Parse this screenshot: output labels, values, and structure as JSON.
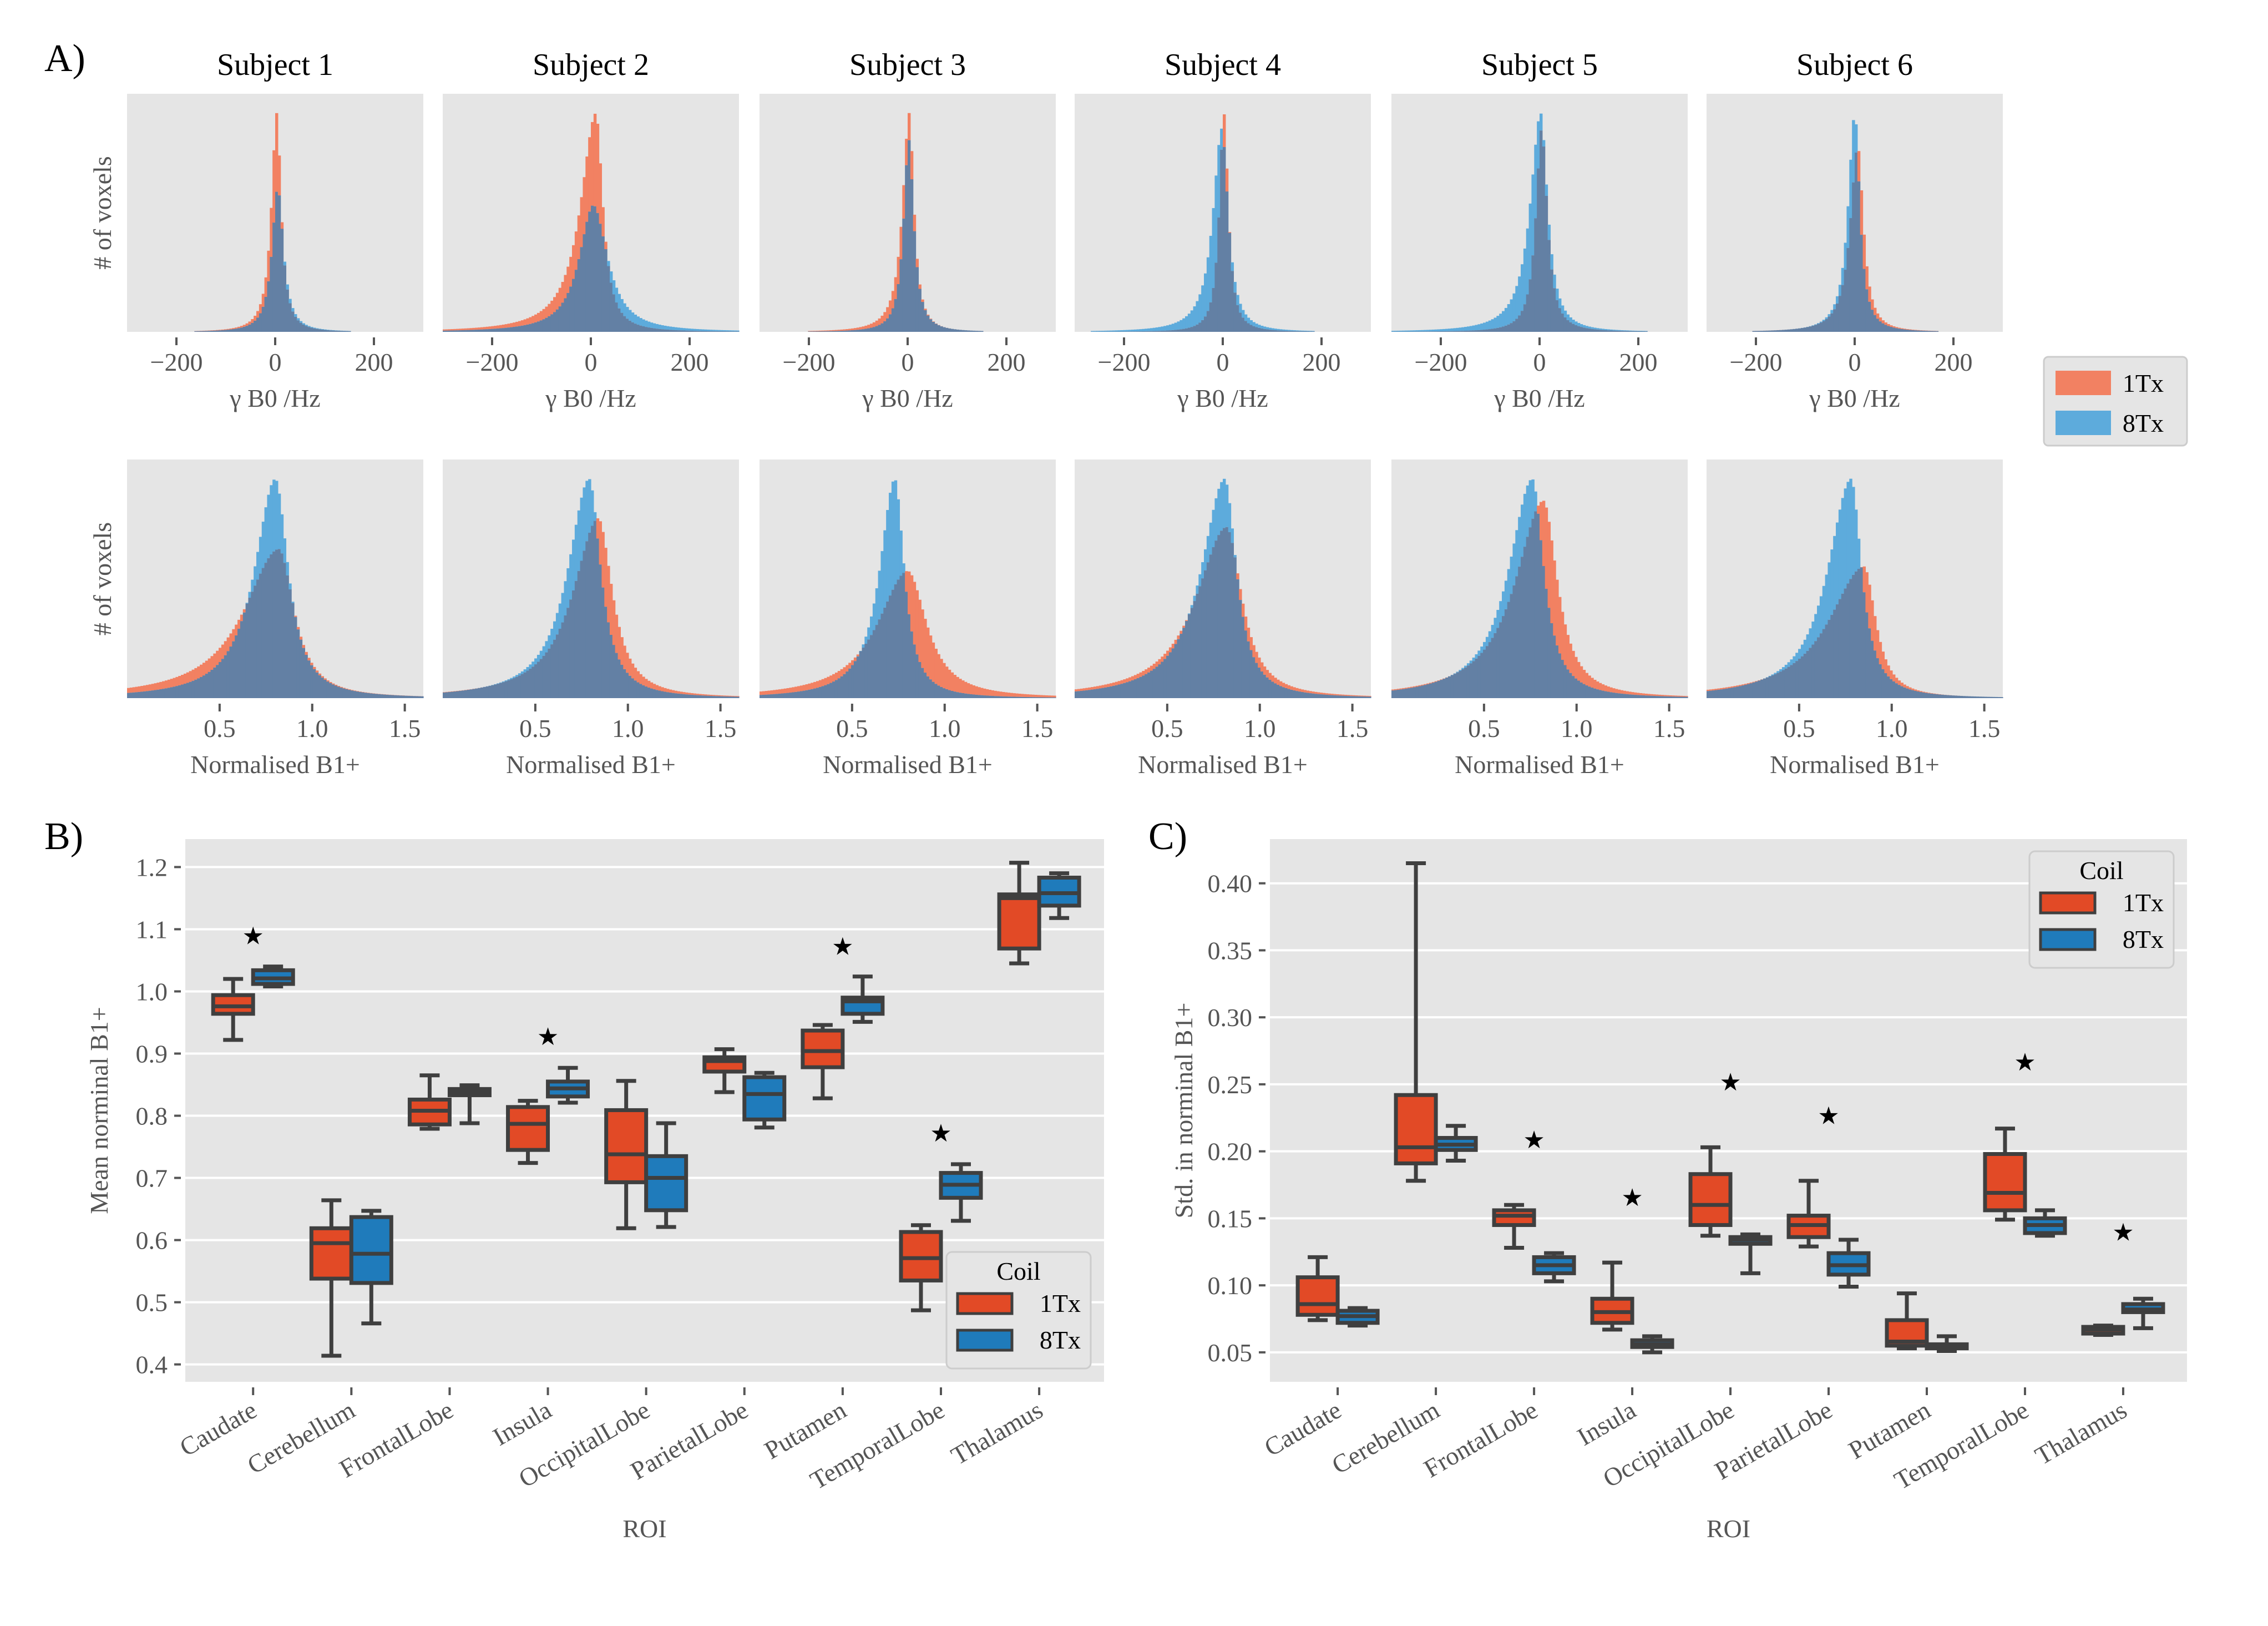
{
  "figure": {
    "panel_letters": [
      "A)",
      "B)",
      "C)"
    ]
  },
  "chart_data": [
    {
      "id": "A",
      "type": "histogram-grid",
      "subjects": [
        "Subject 1",
        "Subject 2",
        "Subject 3",
        "Subject 4",
        "Subject 5",
        "Subject 6"
      ],
      "series_names": [
        "1Tx",
        "8Tx"
      ],
      "series_colors": {
        "1Tx": "#f28162",
        "8Tx": "#5dabdc",
        "overlap": "#6380a4"
      },
      "legend": {
        "entries": [
          "1Tx",
          "8Tx"
        ],
        "placement": "right"
      },
      "rows": [
        {
          "name": "B0",
          "ylabel": "# of voxels",
          "xlabel": "γ B0 /Hz",
          "xlim": [
            -300,
            300
          ],
          "xticks": [
            -200,
            0,
            200
          ],
          "xtick_labels": [
            "−200",
            "0",
            "200"
          ],
          "approx_distributions": [
            {
              "subject": "Subject 1",
              "1Tx": {
                "center": 3,
                "width": 14,
                "peak": 1.0,
                "left_tail": 1.2
              },
              "8Tx": {
                "center": 5,
                "width": 18,
                "peak": 0.66,
                "left_tail": 1.0
              }
            },
            {
              "subject": "Subject 2",
              "1Tx": {
                "center": 10,
                "width": 22,
                "peak": 1.0,
                "left_tail": 2.2
              },
              "8Tx": {
                "center": 5,
                "width": 45,
                "peak": 0.58,
                "left_tail": 1.0
              }
            },
            {
              "subject": "Subject 3",
              "1Tx": {
                "center": 3,
                "width": 15,
                "peak": 1.0,
                "left_tail": 1.4
              },
              "8Tx": {
                "center": 2,
                "width": 16,
                "peak": 0.88,
                "left_tail": 1.0
              }
            },
            {
              "subject": "Subject 4",
              "1Tx": {
                "center": 2,
                "width": 14,
                "peak": 1.0,
                "left_tail": 1.0
              },
              "8Tx": {
                "center": -2,
                "width": 20,
                "peak": 0.93,
                "left_tail": 1.4
              }
            },
            {
              "subject": "Subject 5",
              "1Tx": {
                "center": 4,
                "width": 18,
                "peak": 0.93,
                "left_tail": 1.0
              },
              "8Tx": {
                "center": 2,
                "width": 22,
                "peak": 1.0,
                "left_tail": 1.5
              }
            },
            {
              "subject": "Subject 6",
              "1Tx": {
                "center": 6,
                "width": 18,
                "peak": 0.85,
                "left_tail": 1.3
              },
              "8Tx": {
                "center": 0,
                "width": 16,
                "peak": 1.0,
                "left_tail": 1.3
              }
            }
          ]
        },
        {
          "name": "B1",
          "ylabel": "# of voxels",
          "xlabel": "Normalised B1+",
          "xlim": [
            0.0,
            1.6
          ],
          "xticks": [
            0.5,
            1.0,
            1.5
          ],
          "xtick_labels": [
            "0.5",
            "1.0",
            "1.5"
          ],
          "approx_distributions": [
            {
              "subject": "Subject 1",
              "1Tx": {
                "center": 0.82,
                "width": 0.13,
                "peak": 0.68,
                "left_tail": 2.3
              },
              "8Tx": {
                "center": 0.8,
                "width": 0.11,
                "peak": 1.0,
                "left_tail": 1.6
              }
            },
            {
              "subject": "Subject 2",
              "1Tx": {
                "center": 0.84,
                "width": 0.12,
                "peak": 0.82,
                "left_tail": 1.8
              },
              "8Tx": {
                "center": 0.79,
                "width": 0.1,
                "peak": 1.0,
                "left_tail": 1.8
              }
            },
            {
              "subject": "Subject 3",
              "1Tx": {
                "center": 0.8,
                "width": 0.16,
                "peak": 0.58,
                "left_tail": 1.6
              },
              "8Tx": {
                "center": 0.73,
                "width": 0.08,
                "peak": 1.0,
                "left_tail": 1.6
              }
            },
            {
              "subject": "Subject 4",
              "1Tx": {
                "center": 0.82,
                "width": 0.13,
                "peak": 0.78,
                "left_tail": 2.0
              },
              "8Tx": {
                "center": 0.81,
                "width": 0.1,
                "peak": 1.0,
                "left_tail": 2.0
              }
            },
            {
              "subject": "Subject 5",
              "1Tx": {
                "center": 0.82,
                "width": 0.12,
                "peak": 0.9,
                "left_tail": 2.0
              },
              "8Tx": {
                "center": 0.76,
                "width": 0.1,
                "peak": 1.0,
                "left_tail": 2.0
              }
            },
            {
              "subject": "Subject 6",
              "1Tx": {
                "center": 0.85,
                "width": 0.1,
                "peak": 0.6,
                "left_tail": 3.0
              },
              "8Tx": {
                "center": 0.78,
                "width": 0.09,
                "peak": 1.0,
                "left_tail": 2.2
              }
            }
          ]
        }
      ]
    },
    {
      "id": "B",
      "type": "box",
      "xlabel": "ROI",
      "ylabel": "Mean norminal B1+",
      "ylim": [
        0.372,
        1.245
      ],
      "yticks": [
        0.4,
        0.5,
        0.6,
        0.7,
        0.8,
        0.9,
        1.0,
        1.1,
        1.2
      ],
      "ytick_labels": [
        "0.4",
        "0.5",
        "0.6",
        "0.7",
        "0.8",
        "0.9",
        "1.0",
        "1.1",
        "1.2"
      ],
      "grid": true,
      "categories": [
        "Caudate",
        "Cerebellum",
        "FrontalLobe",
        "Insula",
        "OccipitalLobe",
        "ParietalLobe",
        "Putamen",
        "TemporalLobe",
        "Thalamus"
      ],
      "legend": {
        "title": "Coil",
        "entries": [
          "1Tx",
          "8Tx"
        ],
        "placement": "lower-right"
      },
      "series": [
        {
          "name": "1Tx",
          "color": "#e24a26",
          "boxes": [
            {
              "whislo": 0.922,
              "q1": 0.964,
              "med": 0.976,
              "q3": 0.994,
              "whishi": 1.02
            },
            {
              "whislo": 0.414,
              "q1": 0.538,
              "med": 0.595,
              "q3": 0.619,
              "whishi": 0.664
            },
            {
              "whislo": 0.779,
              "q1": 0.786,
              "med": 0.808,
              "q3": 0.826,
              "whishi": 0.865
            },
            {
              "whislo": 0.724,
              "q1": 0.745,
              "med": 0.787,
              "q3": 0.814,
              "whishi": 0.824
            },
            {
              "whislo": 0.619,
              "q1": 0.693,
              "med": 0.738,
              "q3": 0.809,
              "whishi": 0.856
            },
            {
              "whislo": 0.838,
              "q1": 0.871,
              "med": 0.888,
              "q3": 0.894,
              "whishi": 0.907
            },
            {
              "whislo": 0.828,
              "q1": 0.878,
              "med": 0.904,
              "q3": 0.937,
              "whishi": 0.946
            },
            {
              "whislo": 0.487,
              "q1": 0.535,
              "med": 0.571,
              "q3": 0.613,
              "whishi": 0.624
            },
            {
              "whislo": 1.045,
              "q1": 1.069,
              "med": 1.15,
              "q3": 1.156,
              "whishi": 1.207
            }
          ]
        },
        {
          "name": "8Tx",
          "color": "#1f7bbb",
          "boxes": [
            {
              "whislo": 1.008,
              "q1": 1.012,
              "med": 1.021,
              "q3": 1.034,
              "whishi": 1.04
            },
            {
              "whislo": 0.466,
              "q1": 0.531,
              "med": 0.578,
              "q3": 0.637,
              "whishi": 0.647
            },
            {
              "whislo": 0.788,
              "q1": 0.833,
              "med": 0.838,
              "q3": 0.843,
              "whishi": 0.849
            },
            {
              "whislo": 0.821,
              "q1": 0.831,
              "med": 0.844,
              "q3": 0.855,
              "whishi": 0.877
            },
            {
              "whislo": 0.621,
              "q1": 0.648,
              "med": 0.7,
              "q3": 0.735,
              "whishi": 0.788
            },
            {
              "whislo": 0.781,
              "q1": 0.794,
              "med": 0.835,
              "q3": 0.862,
              "whishi": 0.869
            },
            {
              "whislo": 0.951,
              "q1": 0.964,
              "med": 0.984,
              "q3": 0.99,
              "whishi": 1.024
            },
            {
              "whislo": 0.631,
              "q1": 0.668,
              "med": 0.689,
              "q3": 0.708,
              "whishi": 0.722
            },
            {
              "whislo": 1.118,
              "q1": 1.138,
              "med": 1.158,
              "q3": 1.183,
              "whishi": 1.19
            }
          ]
        }
      ],
      "significance_markers": [
        {
          "category": "Caudate",
          "y": 1.09,
          "symbol": "★"
        },
        {
          "category": "Insula",
          "y": 0.928,
          "symbol": "★"
        },
        {
          "category": "Putamen",
          "y": 1.073,
          "symbol": "★"
        },
        {
          "category": "TemporalLobe",
          "y": 0.773,
          "symbol": "★"
        }
      ]
    },
    {
      "id": "C",
      "type": "box",
      "xlabel": "ROI",
      "ylabel": "Std. in norminal B1+",
      "ylim": [
        0.028,
        0.433
      ],
      "yticks": [
        0.05,
        0.1,
        0.15,
        0.2,
        0.25,
        0.3,
        0.35,
        0.4
      ],
      "ytick_labels": [
        "0.05",
        "0.10",
        "0.15",
        "0.20",
        "0.25",
        "0.30",
        "0.35",
        "0.40"
      ],
      "grid": true,
      "categories": [
        "Caudate",
        "Cerebellum",
        "FrontalLobe",
        "Insula",
        "OccipitalLobe",
        "ParietalLobe",
        "Putamen",
        "TemporalLobe",
        "Thalamus"
      ],
      "legend": {
        "title": "Coil",
        "entries": [
          "1Tx",
          "8Tx"
        ],
        "placement": "upper-right"
      },
      "series": [
        {
          "name": "1Tx",
          "color": "#e24a26",
          "boxes": [
            {
              "whislo": 0.074,
              "q1": 0.078,
              "med": 0.086,
              "q3": 0.106,
              "whishi": 0.121
            },
            {
              "whislo": 0.178,
              "q1": 0.191,
              "med": 0.203,
              "q3": 0.242,
              "whishi": 0.415
            },
            {
              "whislo": 0.128,
              "q1": 0.145,
              "med": 0.152,
              "q3": 0.156,
              "whishi": 0.16
            },
            {
              "whislo": 0.067,
              "q1": 0.072,
              "med": 0.08,
              "q3": 0.09,
              "whishi": 0.117
            },
            {
              "whislo": 0.137,
              "q1": 0.145,
              "med": 0.16,
              "q3": 0.183,
              "whishi": 0.203
            },
            {
              "whislo": 0.129,
              "q1": 0.136,
              "med": 0.145,
              "q3": 0.152,
              "whishi": 0.178
            },
            {
              "whislo": 0.053,
              "q1": 0.055,
              "med": 0.058,
              "q3": 0.074,
              "whishi": 0.094
            },
            {
              "whislo": 0.149,
              "q1": 0.156,
              "med": 0.169,
              "q3": 0.198,
              "whishi": 0.217
            },
            {
              "whislo": 0.063,
              "q1": 0.064,
              "med": 0.067,
              "q3": 0.069,
              "whishi": 0.07
            }
          ]
        },
        {
          "name": "8Tx",
          "color": "#1f7bbb",
          "boxes": [
            {
              "whislo": 0.07,
              "q1": 0.072,
              "med": 0.077,
              "q3": 0.081,
              "whishi": 0.083
            },
            {
              "whislo": 0.193,
              "q1": 0.201,
              "med": 0.205,
              "q3": 0.21,
              "whishi": 0.219
            },
            {
              "whislo": 0.103,
              "q1": 0.109,
              "med": 0.115,
              "q3": 0.121,
              "whishi": 0.124
            },
            {
              "whislo": 0.05,
              "q1": 0.054,
              "med": 0.056,
              "q3": 0.059,
              "whishi": 0.062
            },
            {
              "whislo": 0.109,
              "q1": 0.131,
              "med": 0.134,
              "q3": 0.136,
              "whishi": 0.138
            },
            {
              "whislo": 0.099,
              "q1": 0.108,
              "med": 0.115,
              "q3": 0.124,
              "whishi": 0.134
            },
            {
              "whislo": 0.051,
              "q1": 0.053,
              "med": 0.054,
              "q3": 0.056,
              "whishi": 0.062
            },
            {
              "whislo": 0.137,
              "q1": 0.139,
              "med": 0.145,
              "q3": 0.15,
              "whishi": 0.156
            },
            {
              "whislo": 0.068,
              "q1": 0.08,
              "med": 0.082,
              "q3": 0.086,
              "whishi": 0.09
            }
          ]
        }
      ],
      "significance_markers": [
        {
          "category": "FrontalLobe",
          "y": 0.209,
          "symbol": "★"
        },
        {
          "category": "Insula",
          "y": 0.166,
          "symbol": "★"
        },
        {
          "category": "OccipitalLobe",
          "y": 0.252,
          "symbol": "★"
        },
        {
          "category": "ParietalLobe",
          "y": 0.227,
          "symbol": "★"
        },
        {
          "category": "TemporalLobe",
          "y": 0.267,
          "symbol": "★"
        },
        {
          "category": "Thalamus",
          "y": 0.14,
          "symbol": "★"
        }
      ]
    }
  ]
}
